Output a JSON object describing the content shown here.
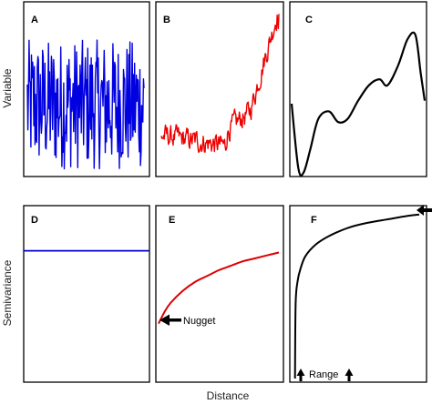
{
  "figure": {
    "xlabel": "Distance",
    "ylabel_top": "Variable",
    "ylabel_bottom": "Semivariance"
  },
  "chart_data": [
    {
      "panel": "A",
      "type": "line",
      "series": [
        {
          "color": "#0000e0",
          "pattern": "white-noise",
          "n": 200
        }
      ]
    },
    {
      "panel": "B",
      "type": "line",
      "series": [
        {
          "color": "#ee0000",
          "pattern": "random-walk",
          "n": 200
        }
      ]
    },
    {
      "panel": "C",
      "type": "line",
      "series": [
        {
          "color": "#000000",
          "x": [
            0,
            0.05,
            0.09,
            0.14,
            0.2,
            0.28,
            0.35,
            0.42,
            0.5,
            0.58,
            0.66,
            0.72,
            0.8,
            0.87,
            0.93,
            0.97,
            1.0
          ],
          "y": [
            0.5,
            0.08,
            0.05,
            0.2,
            0.4,
            0.45,
            0.38,
            0.4,
            0.52,
            0.62,
            0.66,
            0.62,
            0.75,
            0.92,
            0.95,
            0.7,
            0.52
          ]
        }
      ]
    },
    {
      "panel": "D",
      "type": "line",
      "series": [
        {
          "color": "#0000cc",
          "x": [
            0,
            1
          ],
          "y": [
            0.84,
            0.84
          ]
        }
      ]
    },
    {
      "panel": "E",
      "type": "line",
      "series": [
        {
          "color": "#dd0000",
          "x": [
            0,
            0.05,
            0.1,
            0.2,
            0.3,
            0.4,
            0.5,
            0.6,
            0.7,
            0.8,
            0.9,
            1.0
          ],
          "y": [
            0.37,
            0.45,
            0.51,
            0.59,
            0.65,
            0.69,
            0.73,
            0.76,
            0.79,
            0.81,
            0.83,
            0.85
          ]
        }
      ],
      "annotations": [
        {
          "label": "Nugget"
        }
      ]
    },
    {
      "panel": "F",
      "type": "line",
      "series": [
        {
          "color": "#000000",
          "x": [
            0.04,
            0.045,
            0.06,
            0.08,
            0.12,
            0.2,
            0.3,
            0.45,
            0.6,
            0.75,
            0.9,
            1.0
          ],
          "y": [
            0.0,
            0.45,
            0.58,
            0.65,
            0.73,
            0.8,
            0.85,
            0.9,
            0.93,
            0.95,
            0.97,
            0.98
          ]
        }
      ],
      "annotations": [
        {
          "label": "Range"
        }
      ]
    }
  ]
}
